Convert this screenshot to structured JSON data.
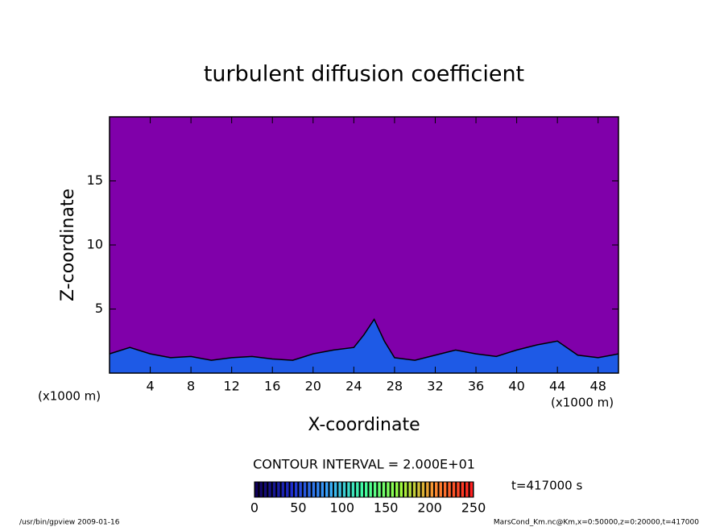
{
  "chart_data": {
    "type": "contour",
    "title": "turbulent diffusion coefficient",
    "x_label": "X-coordinate",
    "y_label": "Z-coordinate",
    "x_unit_label": "(x1000 m)",
    "y_unit_label": "(x1000 m)",
    "xlim": [
      0,
      50
    ],
    "ylim": [
      0,
      20
    ],
    "xticks": [
      4,
      8,
      12,
      16,
      20,
      24,
      28,
      32,
      36,
      40,
      44,
      48
    ],
    "yticks": [
      5,
      10,
      15
    ],
    "background_color": "#8000aa",
    "layer_color": "#1e5ae6",
    "x": [
      0,
      2,
      4,
      6,
      8,
      10,
      12,
      14,
      16,
      18,
      20,
      22,
      24,
      25,
      26,
      27,
      28,
      30,
      32,
      34,
      36,
      38,
      40,
      42,
      44,
      46,
      48,
      50
    ],
    "values": [
      1.5,
      2,
      1.5,
      1.2,
      1.3,
      1,
      1.2,
      1.3,
      1.1,
      1,
      1.5,
      1.8,
      2,
      3,
      4.2,
      2.5,
      1.2,
      1,
      1.4,
      1.8,
      1.5,
      1.3,
      1.8,
      2.2,
      2.5,
      1.4,
      1.2,
      1.5
    ],
    "contour_interval": "CONTOUR INTERVAL = 2.000E+01",
    "colorbar": {
      "lim": [
        0,
        250
      ],
      "ticks": [
        0,
        50,
        100,
        150,
        200,
        250
      ],
      "colors": [
        "#10005a",
        "#1f2fd0",
        "#3aa8ff",
        "#40ffa0",
        "#9cff40",
        "#ff8a30",
        "#ff2020"
      ]
    },
    "time_label": "t=417000 s",
    "footer_left": "/usr/bin/gpview  2009-01-16",
    "footer_right": "MarsCond_Km.nc@Km,x=0:50000,z=0:20000,t=417000"
  }
}
